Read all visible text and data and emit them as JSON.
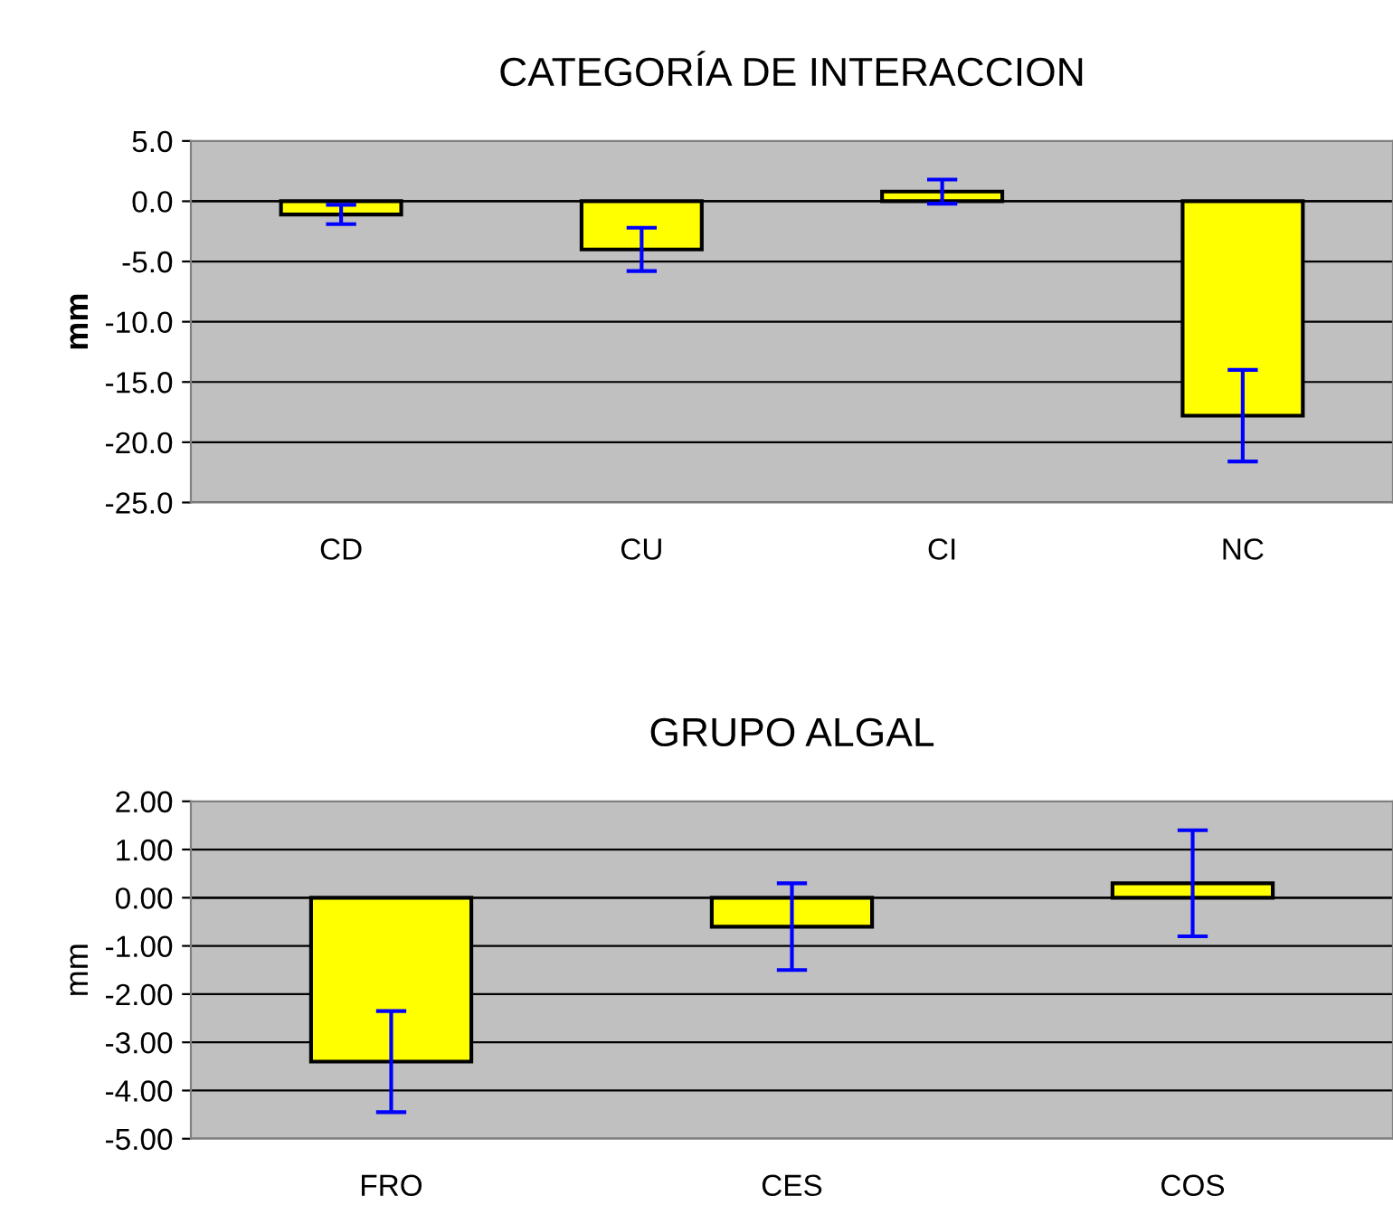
{
  "chart_data": [
    {
      "type": "bar",
      "title": "CATEGORÍA DE INTERACCION",
      "ylabel": "mm",
      "categories": [
        "CD",
        "CU",
        "CI",
        "NC"
      ],
      "values": [
        -1.1,
        -4.0,
        0.8,
        -17.8
      ],
      "errors": [
        0.8,
        1.8,
        1.0,
        3.8
      ],
      "color": "#ffff00",
      "ylim": [
        -25,
        5
      ],
      "yticks": [
        {
          "value": 5,
          "label": "5.0"
        },
        {
          "value": 0,
          "label": "0.0"
        },
        {
          "value": -5,
          "label": "-5.0"
        },
        {
          "value": -10,
          "label": "-10.0"
        },
        {
          "value": -15,
          "label": "-15.0"
        },
        {
          "value": -20,
          "label": "-20.0"
        },
        {
          "value": -25,
          "label": "-25.0"
        }
      ],
      "grid": "y"
    },
    {
      "type": "bar",
      "title": "GRUPO ALGAL",
      "ylabel": "mm",
      "categories": [
        "FRO",
        "CES",
        "COS"
      ],
      "values": [
        -3.4,
        -0.6,
        0.3
      ],
      "errors": [
        1.05,
        0.9,
        1.1
      ],
      "color": "#ffff00",
      "ylim": [
        -5,
        2
      ],
      "yticks": [
        {
          "value": 2,
          "label": "2.00"
        },
        {
          "value": 1,
          "label": "1.00"
        },
        {
          "value": 0,
          "label": "0.00"
        },
        {
          "value": -1,
          "label": "-1.00"
        },
        {
          "value": -2,
          "label": "-2.00"
        },
        {
          "value": -3,
          "label": "-3.00"
        },
        {
          "value": -4,
          "label": "-4.00"
        },
        {
          "value": -5,
          "label": "-5.00"
        }
      ],
      "grid": "y"
    }
  ]
}
